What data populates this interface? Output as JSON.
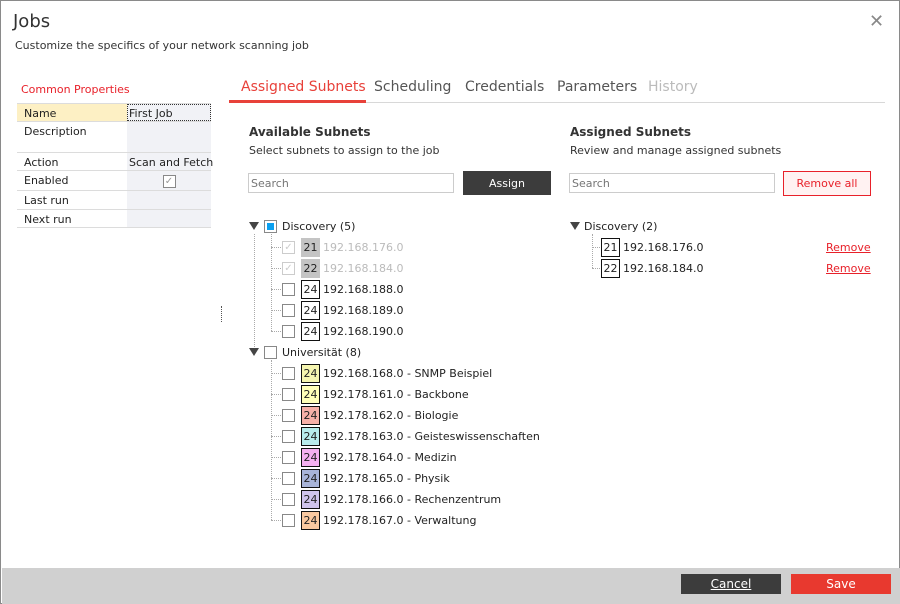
{
  "window": {
    "title": "Jobs",
    "subtitle": "Customize the specifics of your network scanning job",
    "close_icon": "close-icon"
  },
  "properties": {
    "title": "Common Properties",
    "rows": [
      {
        "label": "Name",
        "value": "First Job"
      },
      {
        "label": "Description",
        "value": ""
      },
      {
        "label": "Action",
        "value": "Scan and Fetch"
      },
      {
        "label": "Enabled",
        "value": "checked"
      },
      {
        "label": "Last run",
        "value": ""
      },
      {
        "label": "Next run",
        "value": ""
      }
    ]
  },
  "tabs": [
    {
      "label": "Assigned Subnets",
      "active": true
    },
    {
      "label": "Scheduling"
    },
    {
      "label": "Credentials"
    },
    {
      "label": "Parameters"
    },
    {
      "label": "History",
      "disabled": true
    }
  ],
  "available": {
    "title": "Available Subnets",
    "subtitle": "Select subnets to assign to the job",
    "search_placeholder": "Search",
    "assign_label": "Assign",
    "groups": [
      {
        "label": "Discovery (5)",
        "state": "partial",
        "items": [
          {
            "mask": "21",
            "ip": "192.168.176.0",
            "checked": true,
            "disabled": true,
            "color": "#c4c4c4"
          },
          {
            "mask": "22",
            "ip": "192.168.184.0",
            "checked": true,
            "disabled": true,
            "color": "#c4c4c4"
          },
          {
            "mask": "24",
            "ip": "192.168.188.0",
            "color": "#ffffff"
          },
          {
            "mask": "24",
            "ip": "192.168.189.0",
            "color": "#ffffff"
          },
          {
            "mask": "24",
            "ip": "192.168.190.0",
            "color": "#ffffff"
          }
        ]
      },
      {
        "label": "Universität (8)",
        "state": "unchecked",
        "items": [
          {
            "mask": "24",
            "ip": "192.168.168.0 - SNMP Beispiel",
            "color": "#f5f5b0"
          },
          {
            "mask": "24",
            "ip": "192.178.161.0 - Backbone",
            "color": "#ffffb8"
          },
          {
            "mask": "24",
            "ip": "192.178.162.0 - Biologie",
            "color": "#f7b0a8"
          },
          {
            "mask": "24",
            "ip": "192.178.163.0 - Geisteswissenschaften",
            "color": "#b8ecec"
          },
          {
            "mask": "24",
            "ip": "192.178.164.0 - Medizin",
            "color": "#f4b0f0"
          },
          {
            "mask": "24",
            "ip": "192.178.165.0 - Physik",
            "color": "#a8b4d8"
          },
          {
            "mask": "24",
            "ip": "192.178.166.0 - Rechenzentrum",
            "color": "#cfc4ec"
          },
          {
            "mask": "24",
            "ip": "192.178.167.0 - Verwaltung",
            "color": "#f9c8a0"
          }
        ]
      }
    ]
  },
  "assigned": {
    "title": "Assigned Subnets",
    "subtitle": "Review and manage assigned subnets",
    "search_placeholder": "Search",
    "remove_all_label": "Remove all",
    "groups": [
      {
        "label": "Discovery (2)",
        "items": [
          {
            "mask": "21",
            "ip": "192.168.176.0",
            "remove": "Remove"
          },
          {
            "mask": "22",
            "ip": "192.168.184.0",
            "remove": "Remove"
          }
        ]
      }
    ]
  },
  "footer": {
    "cancel": "Cancel",
    "save": "Save"
  },
  "colors": {
    "accent": "#e8413a",
    "dark": "#3c3c3c",
    "footer": "#d0d0d0"
  }
}
